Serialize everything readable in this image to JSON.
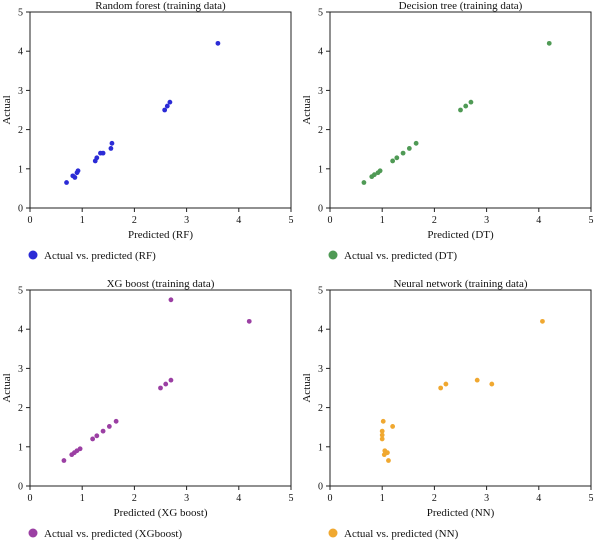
{
  "chart_data": [
    {
      "type": "scatter",
      "title": "Random forest (training data)",
      "xlabel": "Predicted (RF)",
      "ylabel": "Actual",
      "xlim": [
        0,
        5
      ],
      "ylim": [
        0,
        5
      ],
      "xticks": [
        0,
        1,
        2,
        3,
        4,
        5
      ],
      "yticks": [
        0,
        1,
        2,
        3,
        4,
        5
      ],
      "grid": false,
      "legend_placement": "bottom-left",
      "series": [
        {
          "name": "Actual vs. predicted (RF)",
          "color": "#2b2bd6",
          "points": [
            [
              0.7,
              0.65
            ],
            [
              0.82,
              0.82
            ],
            [
              0.86,
              0.78
            ],
            [
              0.9,
              0.9
            ],
            [
              0.92,
              0.95
            ],
            [
              1.25,
              1.2
            ],
            [
              1.28,
              1.28
            ],
            [
              1.35,
              1.4
            ],
            [
              1.4,
              1.4
            ],
            [
              1.55,
              1.52
            ],
            [
              1.57,
              1.65
            ],
            [
              2.58,
              2.5
            ],
            [
              2.63,
              2.6
            ],
            [
              2.68,
              2.7
            ],
            [
              3.6,
              4.2
            ]
          ]
        }
      ]
    },
    {
      "type": "scatter",
      "title": "Decision tree (training data)",
      "xlabel": "Predicted (DT)",
      "ylabel": "Actual",
      "xlim": [
        0,
        5
      ],
      "ylim": [
        0,
        5
      ],
      "xticks": [
        0,
        1,
        2,
        3,
        4,
        5
      ],
      "yticks": [
        0,
        1,
        2,
        3,
        4,
        5
      ],
      "grid": false,
      "legend_placement": "bottom-left",
      "series": [
        {
          "name": "Actual vs. predicted (DT)",
          "color": "#4f9a55",
          "points": [
            [
              0.65,
              0.65
            ],
            [
              0.8,
              0.8
            ],
            [
              0.85,
              0.85
            ],
            [
              0.92,
              0.9
            ],
            [
              0.96,
              0.95
            ],
            [
              1.2,
              1.2
            ],
            [
              1.28,
              1.28
            ],
            [
              1.4,
              1.4
            ],
            [
              1.52,
              1.52
            ],
            [
              1.65,
              1.65
            ],
            [
              2.5,
              2.5
            ],
            [
              2.6,
              2.6
            ],
            [
              2.7,
              2.7
            ],
            [
              4.2,
              4.2
            ]
          ]
        }
      ]
    },
    {
      "type": "scatter",
      "title": "XG boost (training data)",
      "xlabel": "Predicted (XG boost)",
      "ylabel": "Actual",
      "xlim": [
        0,
        5
      ],
      "ylim": [
        0,
        5
      ],
      "xticks": [
        0,
        1,
        2,
        3,
        4,
        5
      ],
      "yticks": [
        0,
        1,
        2,
        3,
        4,
        5
      ],
      "grid": false,
      "legend_placement": "bottom-left",
      "series": [
        {
          "name": "Actual vs. predicted (XGboost)",
          "color": "#9b3fa3",
          "points": [
            [
              0.65,
              0.65
            ],
            [
              0.8,
              0.8
            ],
            [
              0.85,
              0.85
            ],
            [
              0.9,
              0.9
            ],
            [
              0.96,
              0.95
            ],
            [
              1.2,
              1.2
            ],
            [
              1.28,
              1.28
            ],
            [
              1.4,
              1.4
            ],
            [
              1.52,
              1.52
            ],
            [
              1.65,
              1.65
            ],
            [
              2.5,
              2.5
            ],
            [
              2.6,
              2.6
            ],
            [
              2.7,
              2.7
            ],
            [
              2.7,
              4.75
            ],
            [
              4.2,
              4.2
            ]
          ]
        }
      ]
    },
    {
      "type": "scatter",
      "title": "Neural network (training data)",
      "xlabel": "Predicted (NN)",
      "ylabel": "Actual",
      "xlim": [
        0,
        5
      ],
      "ylim": [
        0,
        5
      ],
      "xticks": [
        0,
        1,
        2,
        3,
        4,
        5
      ],
      "yticks": [
        0,
        1,
        2,
        3,
        4,
        5
      ],
      "grid": false,
      "legend_placement": "bottom-left",
      "series": [
        {
          "name": "Actual vs. predicted (NN)",
          "color": "#f0a830",
          "points": [
            [
              1.0,
              1.2
            ],
            [
              1.0,
              1.3
            ],
            [
              1.0,
              1.4
            ],
            [
              1.02,
              1.65
            ],
            [
              1.04,
              0.8
            ],
            [
              1.05,
              0.9
            ],
            [
              1.07,
              0.85
            ],
            [
              1.1,
              0.85
            ],
            [
              1.12,
              0.65
            ],
            [
              1.2,
              1.52
            ],
            [
              2.12,
              2.5
            ],
            [
              2.22,
              2.6
            ],
            [
              2.82,
              2.7
            ],
            [
              3.1,
              2.6
            ],
            [
              4.07,
              4.2
            ]
          ]
        }
      ]
    }
  ]
}
